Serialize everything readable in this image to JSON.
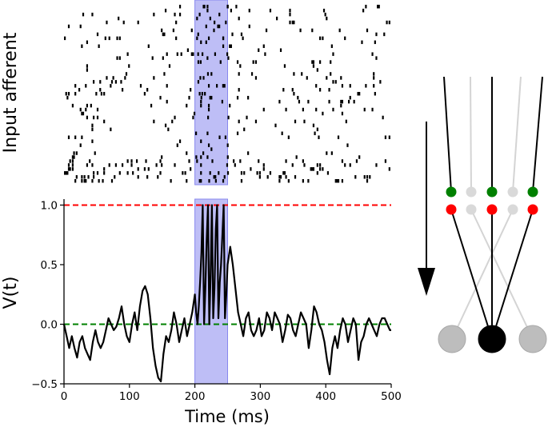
{
  "chart_data": [
    {
      "type": "raster",
      "ylabel": "Input afferent",
      "xlim": [
        0,
        500
      ],
      "highlight": [
        200,
        250
      ],
      "highlight_color": "#8888ee",
      "n_afferents": 45,
      "density_profile": [
        {
          "afferent_from": 0,
          "afferent_to": 5,
          "rate": 0.075
        },
        {
          "afferent_from": 6,
          "afferent_to": 14,
          "rate": 0.02
        },
        {
          "afferent_from": 15,
          "afferent_to": 44,
          "rate": 0.03
        }
      ],
      "pattern_spikes_in_window": 40
    },
    {
      "type": "line",
      "xlabel": "Time (ms)",
      "ylabel": "V(t)",
      "xlim": [
        0,
        500
      ],
      "ylim": [
        -0.5,
        1.05
      ],
      "xticks": [
        "0",
        "100",
        "200",
        "300",
        "400",
        "500"
      ],
      "yticks": [
        "−0.5",
        "0.0",
        "0.5",
        "1.0"
      ],
      "ytick_values": [
        -0.5,
        0,
        0.5,
        1.0
      ],
      "xtick_values": [
        0,
        100,
        200,
        300,
        400,
        500
      ],
      "highlight": [
        200,
        250
      ],
      "highlight_color": "#8888ee",
      "threshold": 1.0,
      "threshold_color": "#ff0000",
      "baseline": 0.0,
      "baseline_color": "#008000",
      "series": [
        {
          "x": [
            0,
            4,
            8,
            12,
            16,
            20,
            24,
            28,
            32,
            36,
            40,
            44,
            48,
            52,
            56,
            60,
            64,
            68,
            72,
            76,
            80,
            84,
            88,
            92,
            96,
            100,
            104,
            108,
            112,
            116,
            120,
            124,
            128,
            132,
            136,
            140,
            144,
            148,
            152,
            156,
            160,
            164,
            168,
            172,
            176,
            180,
            184,
            188,
            192,
            196,
            200,
            202,
            204,
            206,
            208,
            210,
            212,
            214,
            216,
            218,
            220,
            222,
            224,
            226,
            228,
            230,
            232,
            234,
            236,
            238,
            240,
            242,
            244,
            246,
            248,
            250,
            254,
            258,
            262,
            266,
            270,
            274,
            278,
            282,
            286,
            290,
            294,
            298,
            302,
            306,
            310,
            314,
            318,
            322,
            326,
            330,
            334,
            338,
            342,
            346,
            350,
            354,
            358,
            362,
            366,
            370,
            374,
            378,
            382,
            386,
            390,
            394,
            398,
            402,
            406,
            410,
            414,
            418,
            422,
            426,
            430,
            434,
            438,
            442,
            446,
            450,
            454,
            458,
            462,
            466,
            470,
            474,
            478,
            482,
            486,
            490,
            494,
            498,
            500
          ],
          "y": [
            0.0,
            -0.1,
            -0.2,
            -0.1,
            -0.2,
            -0.28,
            -0.15,
            -0.1,
            -0.2,
            -0.25,
            -0.3,
            -0.15,
            -0.05,
            -0.15,
            -0.2,
            -0.15,
            -0.05,
            0.05,
            0.0,
            -0.05,
            -0.02,
            0.05,
            0.15,
            0.0,
            -0.1,
            -0.15,
            0.0,
            0.1,
            -0.05,
            0.15,
            0.28,
            0.32,
            0.25,
            0.05,
            -0.2,
            -0.35,
            -0.45,
            -0.48,
            -0.25,
            -0.1,
            -0.15,
            -0.05,
            0.1,
            0.0,
            -0.15,
            -0.05,
            0.05,
            -0.1,
            0.0,
            0.1,
            0.25,
            0.1,
            0.0,
            0.15,
            0.35,
            0.6,
            1.0,
            0.0,
            0.3,
            0.7,
            1.0,
            0.0,
            0.4,
            1.0,
            0.05,
            0.3,
            0.8,
            1.0,
            0.05,
            0.35,
            0.5,
            0.75,
            1.0,
            0.05,
            0.25,
            0.5,
            0.65,
            0.5,
            0.3,
            0.1,
            0.0,
            -0.1,
            0.05,
            0.1,
            -0.05,
            -0.1,
            -0.05,
            0.05,
            -0.1,
            -0.05,
            0.1,
            0.05,
            -0.05,
            0.1,
            0.05,
            0.0,
            -0.15,
            -0.05,
            0.08,
            0.05,
            -0.05,
            -0.1,
            0.0,
            0.1,
            0.05,
            0.0,
            -0.2,
            -0.05,
            0.15,
            0.1,
            0.0,
            -0.05,
            -0.15,
            -0.3,
            -0.42,
            -0.2,
            -0.1,
            -0.2,
            -0.05,
            0.05,
            0.0,
            -0.15,
            -0.05,
            0.05,
            0.0,
            -0.3,
            -0.15,
            -0.1,
            0.0,
            0.05,
            0.0,
            -0.05,
            -0.1,
            0.0,
            0.05,
            0.05,
            0.0,
            -0.05,
            -0.05
          ]
        }
      ]
    },
    {
      "type": "diagram",
      "arrow": "down",
      "layers": [
        {
          "row": "green",
          "nodes": [
            "#008000",
            "#d9d9d9",
            "#008000",
            "#d9d9d9",
            "#008000"
          ]
        },
        {
          "row": "red",
          "nodes": [
            "#ff0000",
            "#d9d9d9",
            "#ff0000",
            "#d9d9d9",
            "#ff0000"
          ]
        }
      ],
      "neurons": [
        {
          "color": "#bdbdbd",
          "active": false
        },
        {
          "color": "#000000",
          "active": true
        },
        {
          "color": "#bdbdbd",
          "active": false
        }
      ]
    }
  ]
}
